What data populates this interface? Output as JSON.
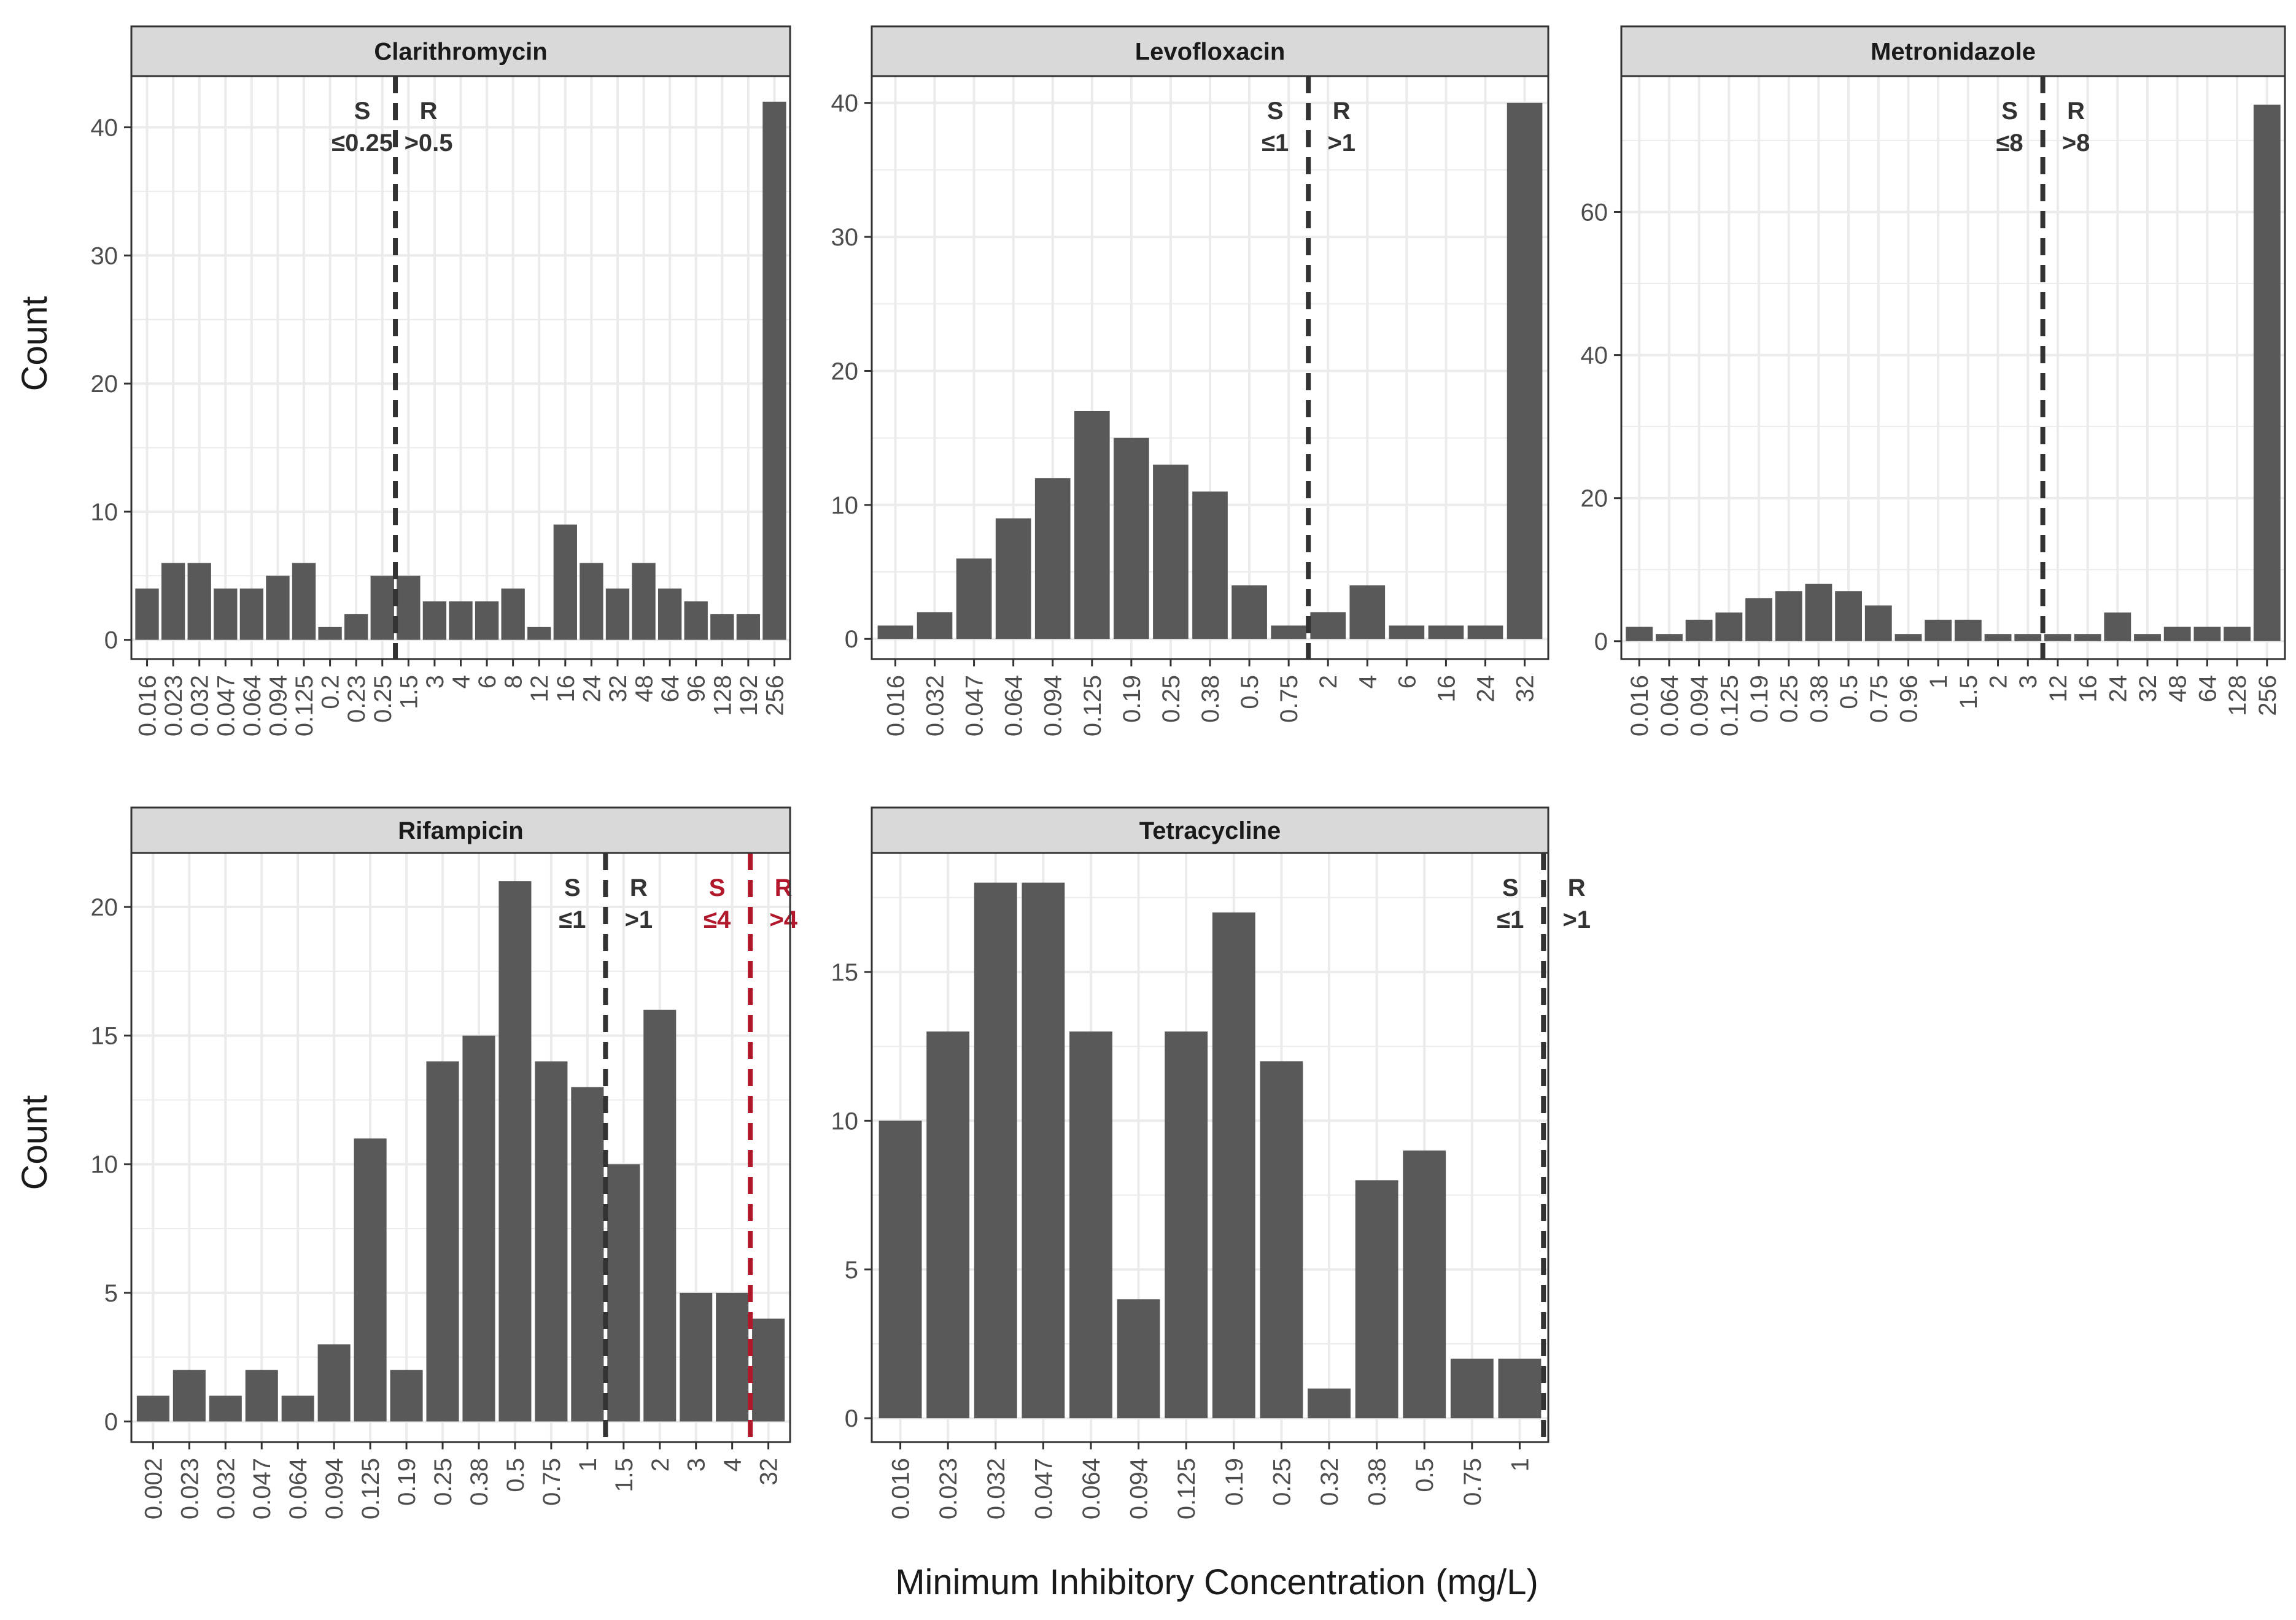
{
  "figure": {
    "xlabel": "Minimum Inhibitory Concentration (mg/L)",
    "ylabel": "Count",
    "colors": {
      "bar": "#595959",
      "strip_bg": "#d9d9d9",
      "strip_border": "#333333",
      "grid": "#ebebeb",
      "axis_text": "#4d4d4d",
      "breakpoint_black": "#333333",
      "breakpoint_red": "#b2182b",
      "text": "#1a1a1a"
    }
  },
  "chart_data": [
    {
      "type": "bar",
      "title": "Clarithromycin",
      "xlabel": "Minimum Inhibitory Concentration (mg/L)",
      "ylabel": "Count",
      "categories": [
        "0.016",
        "0.023",
        "0.032",
        "0.047",
        "0.064",
        "0.094",
        "0.125",
        "0.2",
        "0.23",
        "0.25",
        "1.5",
        "3",
        "4",
        "6",
        "8",
        "12",
        "16",
        "24",
        "32",
        "48",
        "64",
        "96",
        "128",
        "192",
        "256"
      ],
      "values": [
        4,
        6,
        6,
        4,
        4,
        5,
        6,
        1,
        2,
        5,
        5,
        3,
        3,
        3,
        4,
        1,
        9,
        6,
        4,
        6,
        4,
        3,
        2,
        2,
        42
      ],
      "ylim": [
        -1.5,
        44
      ],
      "yticks": [
        0,
        10,
        20,
        30,
        40
      ],
      "breakpoints": [
        {
          "after_index": 9,
          "color": "black",
          "s_label": "S",
          "s_value": "≤0.25",
          "r_label": "R",
          "r_value": ">0.5"
        }
      ]
    },
    {
      "type": "bar",
      "title": "Levofloxacin",
      "xlabel": "Minimum Inhibitory Concentration (mg/L)",
      "ylabel": "Count",
      "categories": [
        "0.016",
        "0.032",
        "0.047",
        "0.064",
        "0.094",
        "0.125",
        "0.19",
        "0.25",
        "0.38",
        "0.5",
        "0.75",
        "2",
        "4",
        "6",
        "16",
        "24",
        "32"
      ],
      "values": [
        1,
        2,
        6,
        9,
        12,
        17,
        15,
        13,
        11,
        4,
        1,
        2,
        4,
        1,
        1,
        1,
        40
      ],
      "ylim": [
        -1.5,
        42
      ],
      "yticks": [
        0,
        10,
        20,
        30,
        40
      ],
      "breakpoints": [
        {
          "after_index": 10,
          "color": "black",
          "s_label": "S",
          "s_value": "≤1",
          "r_label": "R",
          "r_value": ">1"
        }
      ]
    },
    {
      "type": "bar",
      "title": "Metronidazole",
      "xlabel": "Minimum Inhibitory Concentration (mg/L)",
      "ylabel": "Count",
      "categories": [
        "0.016",
        "0.064",
        "0.094",
        "0.125",
        "0.19",
        "0.25",
        "0.38",
        "0.5",
        "0.75",
        "0.96",
        "1",
        "1.5",
        "2",
        "3",
        "12",
        "16",
        "24",
        "32",
        "48",
        "64",
        "128",
        "256"
      ],
      "values": [
        2,
        1,
        3,
        4,
        6,
        7,
        8,
        7,
        5,
        1,
        3,
        3,
        1,
        1,
        1,
        1,
        4,
        1,
        2,
        2,
        2,
        75
      ],
      "ylim": [
        -2.5,
        79
      ],
      "yticks": [
        0,
        20,
        40,
        60
      ],
      "breakpoints": [
        {
          "after_index": 13,
          "color": "black",
          "s_label": "S",
          "s_value": "≤8",
          "r_label": "R",
          "r_value": ">8"
        }
      ]
    },
    {
      "type": "bar",
      "title": "Rifampicin",
      "xlabel": "Minimum Inhibitory Concentration (mg/L)",
      "ylabel": "Count",
      "categories": [
        "0.002",
        "0.023",
        "0.032",
        "0.047",
        "0.064",
        "0.094",
        "0.125",
        "0.19",
        "0.25",
        "0.38",
        "0.5",
        "0.75",
        "1",
        "1.5",
        "2",
        "3",
        "4",
        "32"
      ],
      "values": [
        1,
        2,
        1,
        2,
        1,
        3,
        11,
        2,
        14,
        15,
        21,
        14,
        13,
        10,
        16,
        5,
        5,
        4
      ],
      "ylim": [
        -0.8,
        22.1
      ],
      "yticks": [
        0,
        5,
        10,
        15,
        20
      ],
      "breakpoints": [
        {
          "after_index": 12,
          "color": "black",
          "s_label": "S",
          "s_value": "≤1",
          "r_label": "R",
          "r_value": ">1"
        },
        {
          "after_index": 16,
          "color": "red",
          "s_label": "S",
          "s_value": "≤4",
          "r_label": "R",
          "r_value": ">4"
        }
      ]
    },
    {
      "type": "bar",
      "title": "Tetracycline",
      "xlabel": "Minimum Inhibitory Concentration (mg/L)",
      "ylabel": "Count",
      "categories": [
        "0.016",
        "0.023",
        "0.032",
        "0.047",
        "0.064",
        "0.094",
        "0.125",
        "0.19",
        "0.25",
        "0.32",
        "0.38",
        "0.5",
        "0.75",
        "1"
      ],
      "values": [
        10,
        13,
        18,
        18,
        13,
        4,
        13,
        17,
        12,
        1,
        8,
        9,
        2,
        2
      ],
      "ylim": [
        -0.8,
        19
      ],
      "yticks": [
        0,
        5,
        10,
        15
      ],
      "breakpoints": [
        {
          "after_index": 13,
          "color": "black",
          "s_label": "S",
          "s_value": "≤1",
          "r_label": "R",
          "r_value": ">1"
        }
      ]
    }
  ]
}
